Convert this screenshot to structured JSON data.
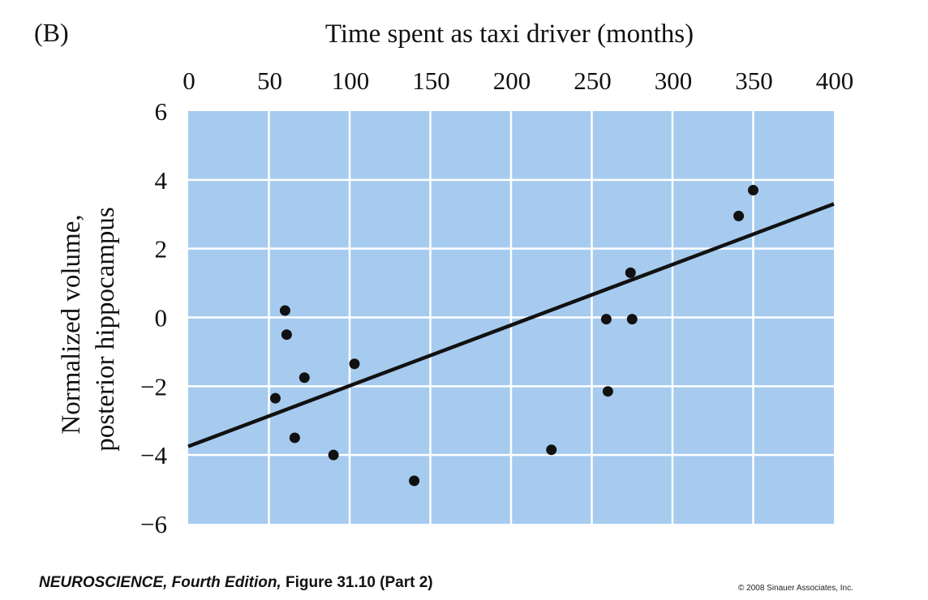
{
  "panel_label": "(B)",
  "caption": {
    "book": "NEUROSCIENCE, Fourth Edition,",
    "figure": "Figure 31.10 (Part 2)"
  },
  "copyright": "© 2008 Sinauer Associates, Inc.",
  "chart_data": {
    "type": "scatter",
    "title": "",
    "xlabel": "Time spent as taxi driver (months)",
    "ylabel_lines": [
      "Normalized volume,",
      "posterior hippocampus"
    ],
    "xlim": [
      0,
      400
    ],
    "ylim": [
      -6,
      6
    ],
    "x_ticks": [
      0,
      50,
      100,
      150,
      200,
      250,
      300,
      350,
      400
    ],
    "y_ticks": [
      6,
      4,
      2,
      0,
      -2,
      -4,
      -6
    ],
    "y_tick_labels": [
      "6",
      "4",
      "2",
      "0",
      "−2",
      "−4",
      "−6"
    ],
    "x_axis_position": "top",
    "grid": true,
    "plot_background": "#a6cbef",
    "grid_color": "#ffffff",
    "point_color": "#111111",
    "points": [
      {
        "x": 60,
        "y": 0.2
      },
      {
        "x": 61,
        "y": -0.5
      },
      {
        "x": 54,
        "y": -2.35
      },
      {
        "x": 72,
        "y": -1.75
      },
      {
        "x": 66,
        "y": -3.5
      },
      {
        "x": 90,
        "y": -4.0
      },
      {
        "x": 103,
        "y": -1.35
      },
      {
        "x": 140,
        "y": -4.75
      },
      {
        "x": 225,
        "y": -3.85
      },
      {
        "x": 259,
        "y": -0.05
      },
      {
        "x": 260,
        "y": -2.15
      },
      {
        "x": 274,
        "y": 1.3
      },
      {
        "x": 275,
        "y": -0.05
      },
      {
        "x": 341,
        "y": 2.95
      },
      {
        "x": 350,
        "y": 3.7
      }
    ],
    "trend_line": {
      "x": [
        0,
        400
      ],
      "y": [
        -3.75,
        3.3
      ]
    }
  }
}
